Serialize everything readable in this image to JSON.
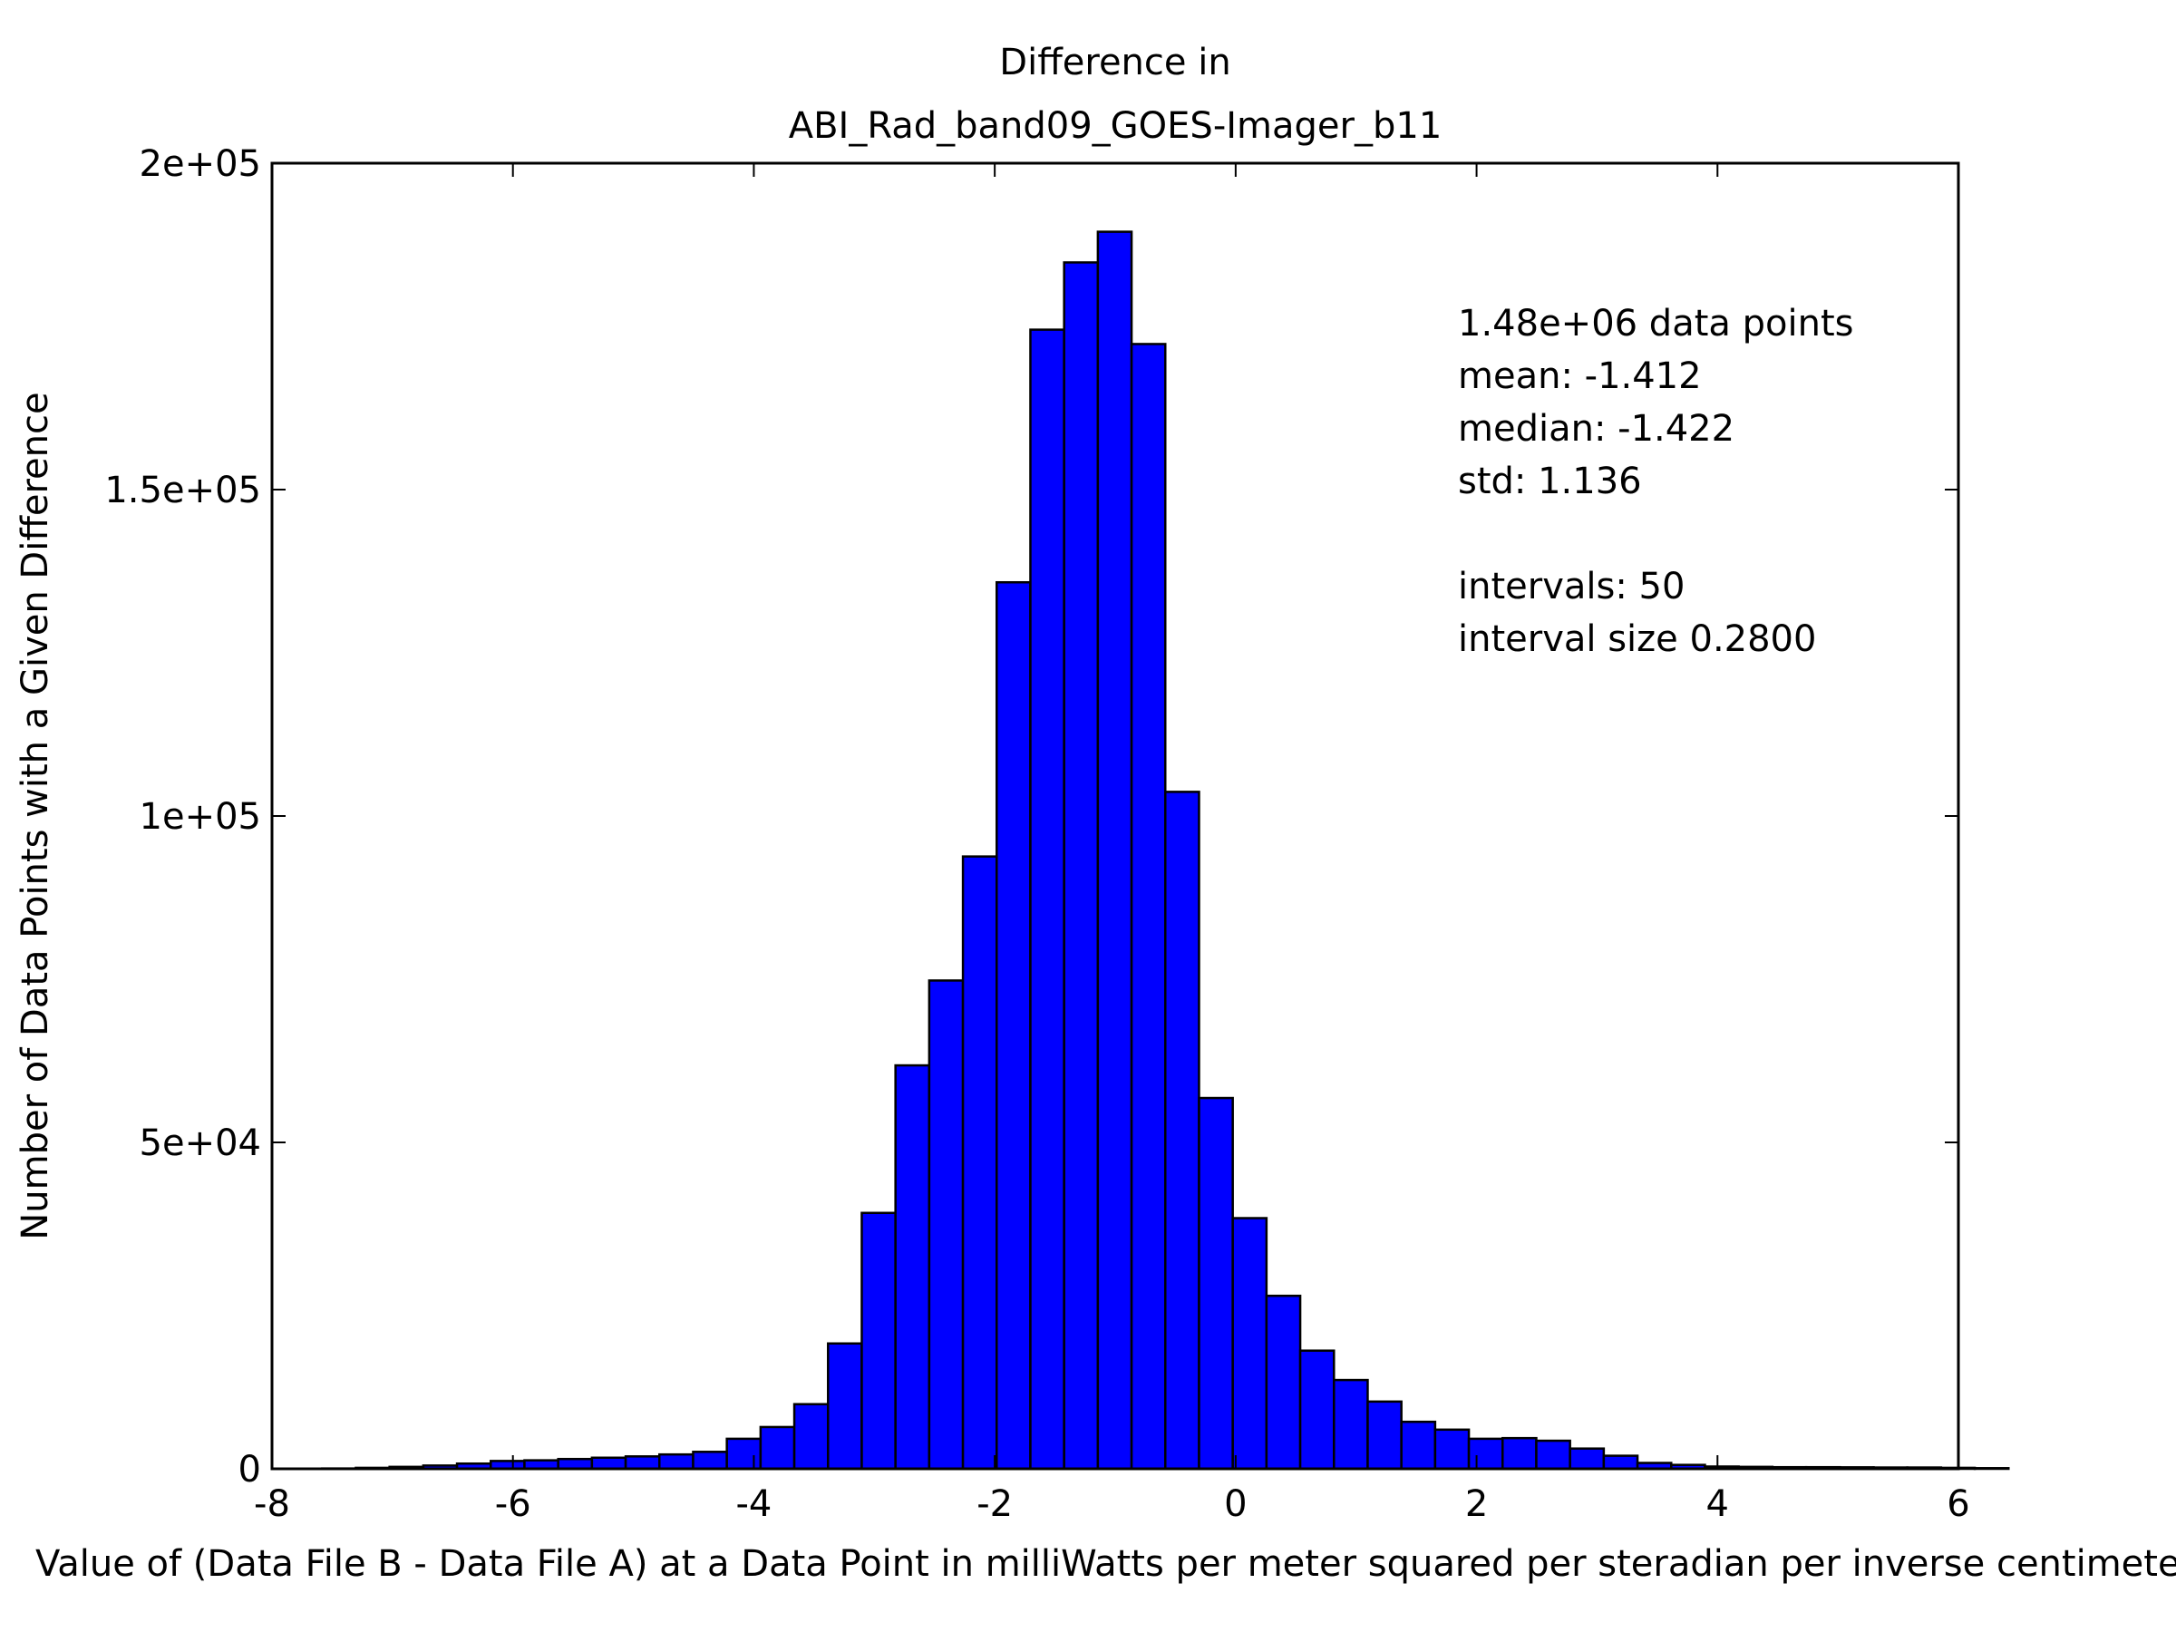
{
  "chart_data": {
    "type": "bar",
    "title": [
      "Difference in",
      "ABI_Rad_band09_GOES-Imager_b11"
    ],
    "xlabel": "Value of (Data File B - Data File A) at a Data Point in milliWatts per meter squared per steradian per inverse centimeter",
    "ylabel": "Number of Data Points with a Given Difference",
    "xlim": [
      -8,
      6
    ],
    "ylim": [
      0,
      200000
    ],
    "x_ticks": [
      "-8",
      "-6",
      "-4",
      "-2",
      "0",
      "2",
      "4",
      "6"
    ],
    "y_ticks": [
      "0",
      "5e+04",
      "1e+05",
      "1.5e+05",
      "2e+05"
    ],
    "bar_color": "#0000ff",
    "bin_start": -7.584,
    "bin_width": 0.28,
    "values": [
      50,
      150,
      300,
      500,
      800,
      1200,
      1300,
      1500,
      1700,
      1900,
      2200,
      2600,
      4600,
      6400,
      9900,
      19200,
      39200,
      61800,
      74800,
      93800,
      135800,
      174500,
      184800,
      189500,
      172300,
      103700,
      56800,
      38400,
      26500,
      18100,
      13600,
      10300,
      7200,
      6000,
      4600,
      4700,
      4300,
      3100,
      2000,
      900,
      600,
      350,
      300,
      250,
      250,
      230,
      200,
      200,
      150,
      100
    ],
    "stats": [
      "1.48e+06 data points",
      "mean: -1.412",
      "median: -1.422",
      "std: 1.136",
      "",
      "intervals: 50",
      "interval size 0.2800"
    ],
    "grid": false,
    "legend": "none"
  }
}
